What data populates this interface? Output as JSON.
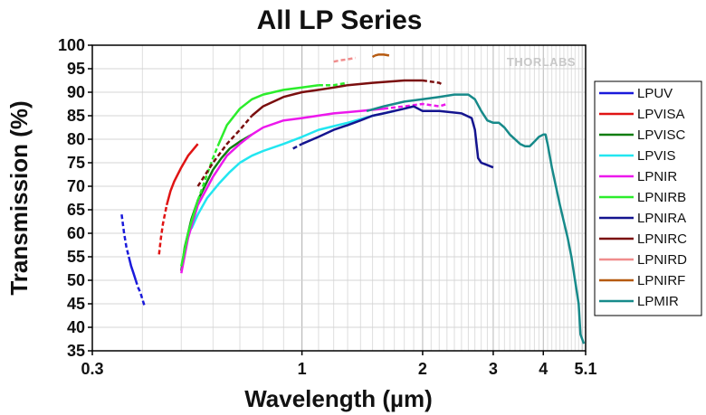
{
  "chart_data": {
    "type": "line",
    "title": "All LP Series",
    "xlabel": "Wavelength (µm)",
    "ylabel": "Transmission (%)",
    "x_scale": "log",
    "xlim": [
      0.3,
      5.1
    ],
    "ylim": [
      35,
      100
    ],
    "x_ticks": [
      0.3,
      1,
      2,
      3,
      4,
      5.1
    ],
    "x_tick_labels": [
      "0.3",
      "1",
      "2",
      "3",
      "4",
      "5.1"
    ],
    "y_ticks": [
      35,
      40,
      45,
      50,
      55,
      60,
      65,
      70,
      75,
      80,
      85,
      90,
      95,
      100
    ],
    "grid": true,
    "legend_position": "right",
    "watermark": "THORLABS",
    "series": [
      {
        "name": "LPUV",
        "color": "#1a1adb",
        "dashed_ranges": [
          [
            0.355,
            0.37
          ],
          [
            0.385,
            0.405
          ]
        ],
        "points": [
          [
            0.355,
            64
          ],
          [
            0.36,
            60
          ],
          [
            0.365,
            57
          ],
          [
            0.37,
            55
          ],
          [
            0.375,
            53
          ],
          [
            0.38,
            51.5
          ],
          [
            0.385,
            50
          ],
          [
            0.39,
            48.5
          ],
          [
            0.395,
            47.5
          ],
          [
            0.4,
            46
          ],
          [
            0.405,
            44.5
          ]
        ]
      },
      {
        "name": "LPVISA",
        "color": "#e01414",
        "dashed_ranges": [
          [
            0.44,
            0.46
          ],
          [
            0.53,
            0.55
          ]
        ],
        "points": [
          [
            0.44,
            55.5
          ],
          [
            0.445,
            59
          ],
          [
            0.45,
            62
          ],
          [
            0.46,
            66
          ],
          [
            0.47,
            69
          ],
          [
            0.48,
            71
          ],
          [
            0.5,
            74
          ],
          [
            0.52,
            76.5
          ],
          [
            0.55,
            79
          ]
        ]
      },
      {
        "name": "LPVISC",
        "color": "#127d12",
        "dashed_ranges": [],
        "points": [
          [
            0.5,
            52
          ],
          [
            0.51,
            57
          ],
          [
            0.53,
            63
          ],
          [
            0.55,
            67
          ],
          [
            0.58,
            71
          ],
          [
            0.6,
            73.5
          ],
          [
            0.63,
            76
          ],
          [
            0.66,
            78
          ],
          [
            0.7,
            79.5
          ],
          [
            0.75,
            81
          ]
        ]
      },
      {
        "name": "LPVIS",
        "color": "#22e6f0",
        "dashed_ranges": [],
        "points": [
          [
            0.53,
            61
          ],
          [
            0.55,
            64
          ],
          [
            0.58,
            67.5
          ],
          [
            0.62,
            70.5
          ],
          [
            0.66,
            73
          ],
          [
            0.7,
            75
          ],
          [
            0.75,
            76.5
          ],
          [
            0.8,
            77.5
          ],
          [
            0.9,
            79
          ],
          [
            1.0,
            80.5
          ],
          [
            1.1,
            82
          ],
          [
            1.3,
            83.5
          ],
          [
            1.5,
            85
          ],
          [
            1.7,
            86
          ]
        ]
      },
      {
        "name": "LPNIR",
        "color": "#ec18ec",
        "dashed_ranges": [
          [
            1.5,
            2.3
          ]
        ],
        "points": [
          [
            0.5,
            51.5
          ],
          [
            0.52,
            59
          ],
          [
            0.55,
            66
          ],
          [
            0.6,
            72
          ],
          [
            0.65,
            76.5
          ],
          [
            0.7,
            79
          ],
          [
            0.75,
            81
          ],
          [
            0.8,
            82.5
          ],
          [
            0.9,
            84
          ],
          [
            1.0,
            84.5
          ],
          [
            1.2,
            85.5
          ],
          [
            1.4,
            86
          ],
          [
            1.6,
            86.5
          ],
          [
            1.8,
            87
          ],
          [
            2.0,
            87.5
          ],
          [
            2.2,
            87
          ],
          [
            2.3,
            87.5
          ]
        ]
      },
      {
        "name": "LPNIRB",
        "color": "#2ced2c",
        "dashed_ranges": [
          [
            0.55,
            0.62
          ],
          [
            1.05,
            1.3
          ]
        ],
        "points": [
          [
            0.5,
            53
          ],
          [
            0.52,
            60
          ],
          [
            0.55,
            67
          ],
          [
            0.58,
            72.5
          ],
          [
            0.6,
            76
          ],
          [
            0.62,
            79
          ],
          [
            0.65,
            83
          ],
          [
            0.7,
            86.5
          ],
          [
            0.75,
            88.5
          ],
          [
            0.8,
            89.5
          ],
          [
            0.9,
            90.5
          ],
          [
            1.0,
            91
          ],
          [
            1.1,
            91.5
          ],
          [
            1.2,
            91.5
          ],
          [
            1.3,
            92
          ]
        ]
      },
      {
        "name": "LPNIRA",
        "color": "#14148f",
        "dashed_ranges": [
          [
            0.95,
            1.0
          ]
        ],
        "points": [
          [
            0.95,
            78
          ],
          [
            1.0,
            79
          ],
          [
            1.1,
            80.5
          ],
          [
            1.2,
            82
          ],
          [
            1.3,
            83
          ],
          [
            1.4,
            84
          ],
          [
            1.5,
            85
          ],
          [
            1.6,
            85.5
          ],
          [
            1.8,
            86.5
          ],
          [
            1.9,
            87
          ],
          [
            2.0,
            86
          ],
          [
            2.2,
            86
          ],
          [
            2.5,
            85.5
          ],
          [
            2.65,
            84.5
          ],
          [
            2.7,
            82
          ],
          [
            2.75,
            76
          ],
          [
            2.8,
            75
          ],
          [
            2.9,
            74.5
          ],
          [
            3.0,
            74
          ]
        ]
      },
      {
        "name": "LPNIRC",
        "color": "#7a0e0e",
        "dashed_ranges": [
          [
            0.55,
            0.78
          ],
          [
            2.0,
            2.25
          ]
        ],
        "points": [
          [
            0.55,
            70
          ],
          [
            0.6,
            75
          ],
          [
            0.65,
            79
          ],
          [
            0.7,
            82
          ],
          [
            0.75,
            85
          ],
          [
            0.8,
            87
          ],
          [
            0.9,
            89
          ],
          [
            1.0,
            90
          ],
          [
            1.1,
            90.5
          ],
          [
            1.2,
            91
          ],
          [
            1.3,
            91.5
          ],
          [
            1.5,
            92
          ],
          [
            1.8,
            92.5
          ],
          [
            2.0,
            92.5
          ],
          [
            2.2,
            92
          ],
          [
            2.25,
            91.5
          ]
        ]
      },
      {
        "name": "LPNIRD",
        "color": "#f08c8c",
        "dashed_ranges": [
          [
            1.2,
            1.36
          ]
        ],
        "points": [
          [
            1.2,
            96.5
          ],
          [
            1.25,
            96.8
          ],
          [
            1.3,
            97
          ],
          [
            1.36,
            97.3
          ]
        ]
      },
      {
        "name": "LPNIRF",
        "color": "#b65a10",
        "dashed_ranges": [
          [
            1.5,
            1.52
          ]
        ],
        "points": [
          [
            1.5,
            97.5
          ],
          [
            1.52,
            97.8
          ],
          [
            1.55,
            98
          ],
          [
            1.6,
            98
          ],
          [
            1.65,
            97.8
          ]
        ]
      },
      {
        "name": "LPMIR",
        "color": "#178a8a",
        "dashed_ranges": [],
        "points": [
          [
            1.45,
            86
          ],
          [
            1.6,
            87
          ],
          [
            1.8,
            88
          ],
          [
            2.0,
            88.5
          ],
          [
            2.2,
            89
          ],
          [
            2.4,
            89.5
          ],
          [
            2.6,
            89.5
          ],
          [
            2.7,
            88.5
          ],
          [
            2.8,
            86
          ],
          [
            2.9,
            84
          ],
          [
            3.0,
            83.5
          ],
          [
            3.1,
            83.5
          ],
          [
            3.2,
            82.5
          ],
          [
            3.3,
            81
          ],
          [
            3.5,
            79
          ],
          [
            3.6,
            78.5
          ],
          [
            3.7,
            78.5
          ],
          [
            3.8,
            79.5
          ],
          [
            3.9,
            80.5
          ],
          [
            4.0,
            81
          ],
          [
            4.05,
            81
          ],
          [
            4.1,
            79
          ],
          [
            4.2,
            74
          ],
          [
            4.4,
            66
          ],
          [
            4.6,
            59
          ],
          [
            4.7,
            55
          ],
          [
            4.8,
            50
          ],
          [
            4.9,
            45
          ],
          [
            4.95,
            38.5
          ],
          [
            5.05,
            36.5
          ]
        ]
      }
    ]
  }
}
